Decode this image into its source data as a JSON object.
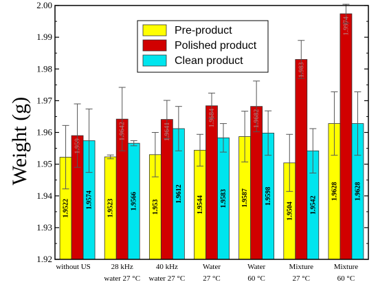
{
  "chart_data": {
    "type": "bar",
    "ylabel": "Weight (g)",
    "ylim": [
      1.92,
      2.0
    ],
    "yticks": [
      "1.92",
      "1.93",
      "1.94",
      "1.95",
      "1.96",
      "1.97",
      "1.98",
      "1.99",
      "2.00"
    ],
    "legend_position": "top-center",
    "categories": [
      [
        "without US"
      ],
      [
        "28 kHz",
        "water 27 °C"
      ],
      [
        "40 kHz",
        "water 27 °C"
      ],
      [
        "Water",
        "27 °C"
      ],
      [
        "Water",
        "60 °C"
      ],
      [
        "Mixture",
        "27 °C"
      ],
      [
        "Mixture",
        "60 °C"
      ]
    ],
    "series": [
      {
        "name": "Pre-product",
        "color": "#ffff00",
        "values": [
          1.9522,
          1.9523,
          1.953,
          1.9544,
          1.9587,
          1.9504,
          1.9628
        ],
        "labels": [
          "1.9522",
          "1.9523",
          "1.953",
          "1.9544",
          "1.9587",
          "1.9504",
          "1.9628"
        ],
        "errors": [
          0.01,
          0.0006,
          0.007,
          0.005,
          0.008,
          0.009,
          0.01
        ],
        "label_color": "#000000"
      },
      {
        "name": "Polished product",
        "color": "#d10000",
        "values": [
          1.959,
          1.9642,
          1.9641,
          1.9684,
          1.9682,
          1.983,
          1.9974
        ],
        "labels": [
          "1.959",
          "1.9642",
          "1.9641",
          "1.9684",
          "1.9682",
          "1.983",
          "1.9974"
        ],
        "errors": [
          0.01,
          0.01,
          0.006,
          0.004,
          0.008,
          0.006,
          0.003
        ],
        "label_color": "#c06060"
      },
      {
        "name": "Clean product",
        "color": "#00e5ee",
        "values": [
          1.9574,
          1.9566,
          1.9612,
          1.9583,
          1.9598,
          1.9542,
          1.9628
        ],
        "labels": [
          "1.9574",
          "1.9566",
          "1.9612",
          "1.9583",
          "1.9598",
          "1.9542",
          "1.9628"
        ],
        "errors": [
          0.01,
          0.0008,
          0.007,
          0.0045,
          0.007,
          0.007,
          0.01
        ],
        "label_color": "#000000"
      }
    ]
  }
}
